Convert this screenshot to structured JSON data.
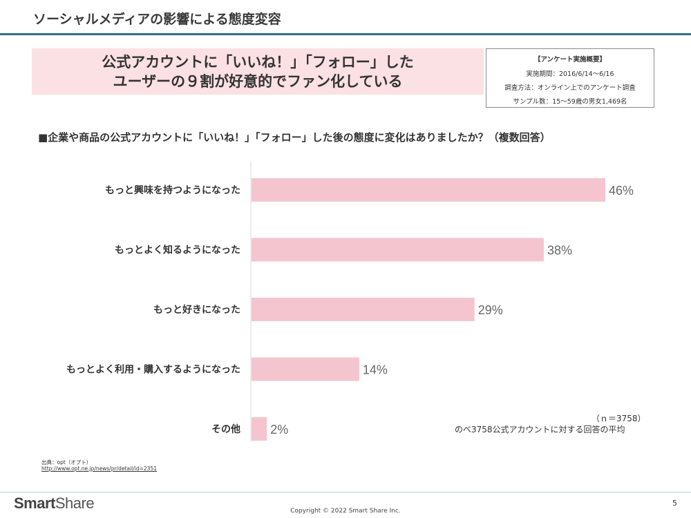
{
  "page": {
    "title": "ソーシャルメディアの影響による態度変容",
    "page_number": "5",
    "copyright": "Copyright © 2022 Smart Share Inc.",
    "logo_part1": "Smart",
    "logo_part2": "Share"
  },
  "headline": {
    "line1": "公式アカウントに「いいね！」「フォロー」した",
    "line2": "ユーザーの９割が好意的でファン化している"
  },
  "survey": {
    "title": "【アンケート実施概要】",
    "period": "実施期間：2016/6/14〜6/16",
    "method": "調査方法：オンライン上でのアンケート調査",
    "sample": "サンプル数：15〜59歳の男女1,469名"
  },
  "question": "■企業や商品の公式アカウントに「いいね！」「フォロー」した後の態度に変化はありましたか？（複数回答）",
  "notes": {
    "n": "（ｎ＝3758）",
    "average": "のべ3758公式アカウントに対する回答の平均"
  },
  "source": {
    "label": "出典：opt（オプト）",
    "url": "http://www.opt.ne.jp/news/pr/detail/id=2351"
  },
  "colors": {
    "bar": "#f5c5cf",
    "title_rule": "#2f6e86",
    "headline_bg": "#fbe0e4"
  },
  "chart_data": {
    "type": "bar",
    "orientation": "horizontal",
    "title": "",
    "xlabel": "",
    "ylabel": "",
    "categories": [
      "もっと興味を持つようになった",
      "もっとよく知るようになった",
      "もっと好きになった",
      "もっとよく利用・購入するようになった",
      "その他"
    ],
    "values": [
      46,
      38,
      29,
      14,
      2
    ],
    "value_labels": [
      "46%",
      "38%",
      "29%",
      "14%",
      "2%"
    ],
    "unit": "%",
    "xlim": [
      0,
      46
    ],
    "grid": false
  }
}
